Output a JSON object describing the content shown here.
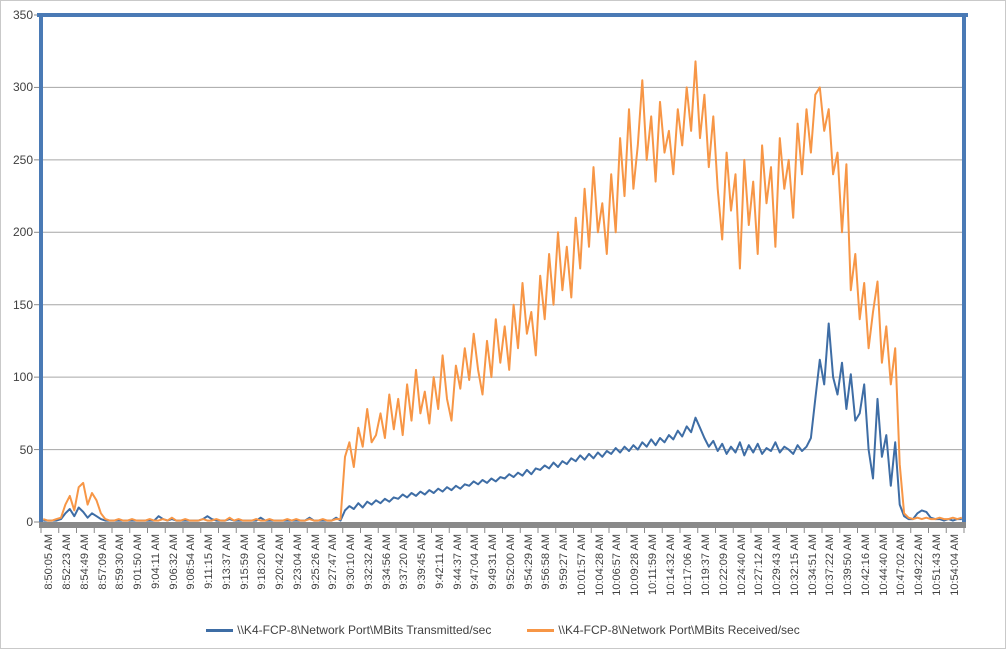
{
  "chart_data": {
    "type": "line",
    "title": "",
    "xlabel": "",
    "ylabel": "",
    "ylim": [
      0,
      350
    ],
    "y_ticks": [
      0,
      50,
      100,
      150,
      200,
      250,
      300,
      350
    ],
    "grid": "horizontal",
    "legend_position": "bottom",
    "plot_border_color": "#4a7ab5",
    "gridline_color": "#a6a6a6",
    "axis_line_color": "#898989",
    "text_color": "#404040",
    "x_labels": [
      "8:50:05 AM",
      "8:52:23 AM",
      "8:54:49 AM",
      "8:57:09 AM",
      "8:59:30 AM",
      "9:01:50 AM",
      "9:04:11 AM",
      "9:06:32 AM",
      "9:08:54 AM",
      "9:11:15 AM",
      "9:13:37 AM",
      "9:15:59 AM",
      "9:18:20 AM",
      "9:20:42 AM",
      "9:23:04 AM",
      "9:25:26 AM",
      "9:27:47 AM",
      "9:30:10 AM",
      "9:32:32 AM",
      "9:34:56 AM",
      "9:37:20 AM",
      "9:39:45 AM",
      "9:42:11 AM",
      "9:44:37 AM",
      "9:47:04 AM",
      "9:49:31 AM",
      "9:52:00 AM",
      "9:54:29 AM",
      "9:56:58 AM",
      "9:59:27 AM",
      "10:01:57 AM",
      "10:04:28 AM",
      "10:06:57 AM",
      "10:09:28 AM",
      "10:11:59 AM",
      "10:14:32 AM",
      "10:17:06 AM",
      "10:19:37 AM",
      "10:22:09 AM",
      "10:24:40 AM",
      "10:27:12 AM",
      "10:29:43 AM",
      "10:32:15 AM",
      "10:34:51 AM",
      "10:37:22 AM",
      "10:39:50 AM",
      "10:42:16 AM",
      "10:44:40 AM",
      "10:47:02 AM",
      "10:49:22 AM",
      "10:51:43 AM",
      "10:54:04 AM"
    ],
    "series": [
      {
        "name": "\\\\K4-FCP-8\\Network Port\\MBits Transmitted/sec",
        "color": "#3e6da5",
        "values": [
          1,
          1,
          1,
          1,
          2,
          6,
          9,
          4,
          10,
          7,
          3,
          6,
          4,
          2,
          1,
          1,
          1,
          1,
          1,
          1,
          1,
          1,
          1,
          1,
          1,
          1,
          4,
          2,
          1,
          2,
          1,
          1,
          1,
          1,
          1,
          1,
          2,
          4,
          2,
          1,
          1,
          1,
          2,
          1,
          1,
          1,
          1,
          1,
          1,
          3,
          1,
          1,
          1,
          1,
          1,
          1,
          1,
          1,
          1,
          1,
          3,
          1,
          1,
          1,
          1,
          1,
          3,
          1,
          8,
          11,
          9,
          13,
          10,
          14,
          12,
          15,
          13,
          16,
          14,
          17,
          16,
          19,
          17,
          20,
          18,
          21,
          19,
          22,
          20,
          23,
          21,
          24,
          22,
          25,
          23,
          26,
          25,
          28,
          26,
          29,
          27,
          30,
          28,
          31,
          30,
          33,
          31,
          34,
          32,
          36,
          33,
          37,
          36,
          39,
          37,
          41,
          38,
          42,
          40,
          44,
          42,
          46,
          43,
          47,
          44,
          48,
          45,
          49,
          47,
          51,
          48,
          52,
          49,
          53,
          50,
          55,
          52,
          57,
          53,
          58,
          55,
          60,
          57,
          63,
          59,
          66,
          62,
          72,
          65,
          58,
          52,
          56,
          49,
          54,
          47,
          52,
          48,
          55,
          46,
          53,
          48,
          54,
          47,
          51,
          49,
          55,
          48,
          52,
          50,
          47,
          53,
          49,
          52,
          58,
          85,
          112,
          95,
          137,
          100,
          88,
          110,
          78,
          102,
          70,
          75,
          95,
          50,
          30,
          85,
          45,
          60,
          25,
          55,
          12,
          4,
          2,
          2,
          6,
          8,
          7,
          3,
          2,
          2,
          1,
          2,
          1,
          2,
          2
        ]
      },
      {
        "name": "\\\\K4-FCP-8\\Network Port\\MBits Received/sec",
        "color": "#f79646",
        "values": [
          2,
          1,
          1,
          2,
          3,
          12,
          18,
          8,
          24,
          27,
          12,
          20,
          15,
          6,
          2,
          1,
          1,
          2,
          1,
          1,
          2,
          1,
          1,
          1,
          2,
          1,
          1,
          2,
          1,
          3,
          1,
          1,
          2,
          1,
          1,
          1,
          2,
          1,
          1,
          2,
          1,
          1,
          3,
          1,
          2,
          1,
          1,
          1,
          2,
          1,
          1,
          2,
          1,
          1,
          1,
          2,
          1,
          2,
          1,
          1,
          2,
          1,
          1,
          2,
          1,
          1,
          2,
          2,
          45,
          55,
          38,
          65,
          52,
          78,
          55,
          60,
          75,
          58,
          88,
          64,
          85,
          60,
          95,
          70,
          105,
          75,
          90,
          68,
          100,
          78,
          115,
          85,
          70,
          108,
          92,
          120,
          98,
          130,
          105,
          88,
          125,
          100,
          140,
          110,
          135,
          105,
          150,
          120,
          165,
          130,
          145,
          115,
          170,
          140,
          185,
          150,
          200,
          160,
          190,
          155,
          210,
          175,
          230,
          190,
          245,
          200,
          220,
          185,
          240,
          200,
          265,
          225,
          285,
          230,
          260,
          305,
          250,
          280,
          235,
          290,
          255,
          270,
          240,
          285,
          260,
          300,
          270,
          318,
          265,
          295,
          245,
          280,
          230,
          195,
          255,
          215,
          240,
          175,
          250,
          205,
          235,
          185,
          260,
          220,
          245,
          190,
          265,
          230,
          250,
          210,
          275,
          240,
          285,
          255,
          295,
          300,
          270,
          285,
          240,
          255,
          200,
          247,
          160,
          185,
          140,
          165,
          120,
          145,
          166,
          110,
          135,
          95,
          120,
          40,
          6,
          3,
          2,
          3,
          2,
          3,
          2,
          2,
          3,
          2,
          2,
          3,
          2,
          3
        ]
      }
    ]
  },
  "legend": {
    "transmitted_label": "\\\\K4-FCP-8\\Network Port\\MBits Transmitted/sec",
    "received_label": "\\\\K4-FCP-8\\Network Port\\MBits Received/sec"
  }
}
